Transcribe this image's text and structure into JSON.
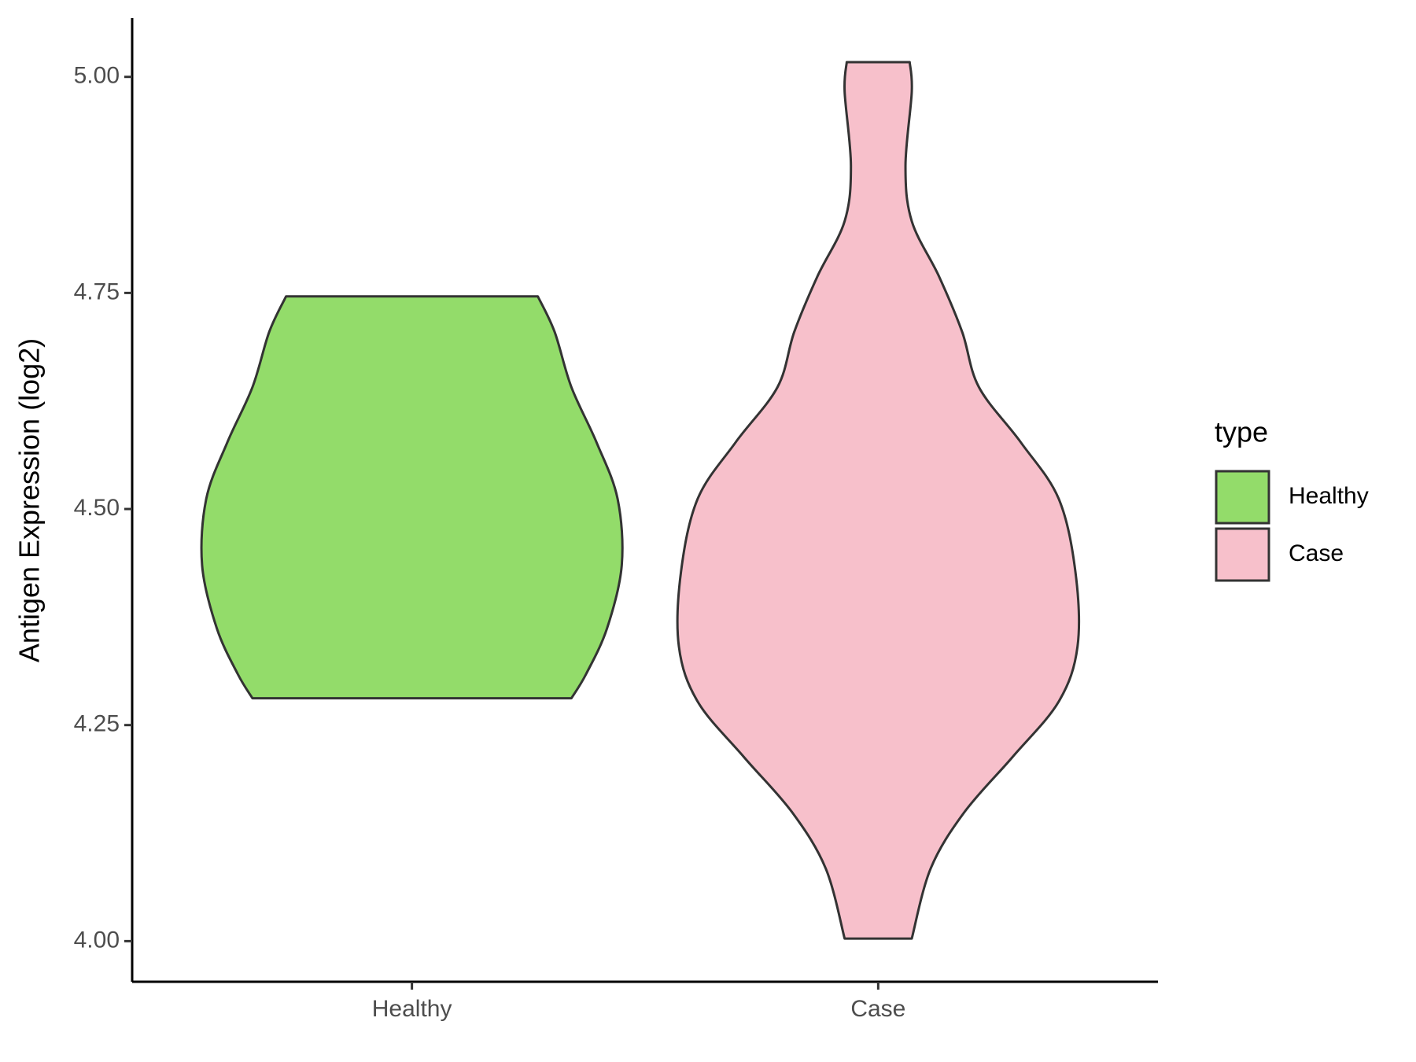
{
  "chart_data": {
    "type": "violin",
    "y_label": "Antigen Expression (log2)",
    "categories": [
      "Healthy",
      "Case"
    ],
    "ylim": [
      3.953,
      5.068
    ],
    "yticks": [
      {
        "value": 4,
        "label": "4.00"
      },
      {
        "value": 4.25,
        "label": "4.25"
      },
      {
        "value": 4.5,
        "label": "4.50"
      },
      {
        "value": 4.75,
        "label": "4.75"
      },
      {
        "value": 5,
        "label": "5.00"
      }
    ],
    "legend_title": "type",
    "series": [
      {
        "name": "Healthy",
        "color": "#93dc6a",
        "values": [
          4.746,
          4.705,
          4.641,
          4.577,
          4.512,
          4.435,
          4.362,
          4.309,
          4.281
        ],
        "widths": [
          0.6,
          0.68,
          0.76,
          0.88,
          0.98,
          1.0,
          0.93,
          0.83,
          0.76
        ]
      },
      {
        "name": "Case",
        "color": "#f7c0cb",
        "values": [
          5.017,
          4.983,
          4.897,
          4.833,
          4.769,
          4.705,
          4.641,
          4.577,
          4.512,
          4.427,
          4.341,
          4.277,
          4.213,
          4.149,
          4.084,
          4.003
        ],
        "widths": [
          0.15,
          0.16,
          0.13,
          0.16,
          0.29,
          0.4,
          0.48,
          0.68,
          0.86,
          0.94,
          0.95,
          0.86,
          0.64,
          0.41,
          0.25,
          0.16
        ]
      }
    ]
  }
}
